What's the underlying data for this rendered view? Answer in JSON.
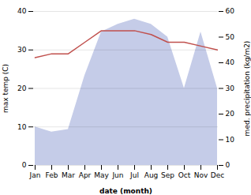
{
  "chart_data": {
    "type": "line",
    "categories": [
      "Jan",
      "Feb",
      "Mar",
      "Apr",
      "May",
      "Jun",
      "Jul",
      "Aug",
      "Sep",
      "Oct",
      "Nov",
      "Dec"
    ],
    "xlabel": "date (month)",
    "ylabel": "max temp (C)",
    "y2label": "med. precipitation (kg/m2)",
    "series": [
      {
        "type": "area",
        "axis": "y2",
        "color": "#c5cce8",
        "values": [
          15,
          13,
          14,
          35,
          52,
          55,
          57,
          55,
          50,
          30,
          52,
          30
        ]
      },
      {
        "type": "line",
        "color": "#c0504d",
        "values": [
          28,
          29,
          29,
          32,
          35,
          35,
          35,
          34,
          32,
          32,
          31,
          30
        ]
      }
    ],
    "ylim": [
      0,
      40
    ],
    "yticks": [
      0,
      10,
      20,
      30,
      40
    ],
    "y2lim": [
      0,
      60
    ],
    "y2ticks": [
      0,
      10,
      20,
      30,
      40,
      50,
      60
    ],
    "grid": true
  }
}
